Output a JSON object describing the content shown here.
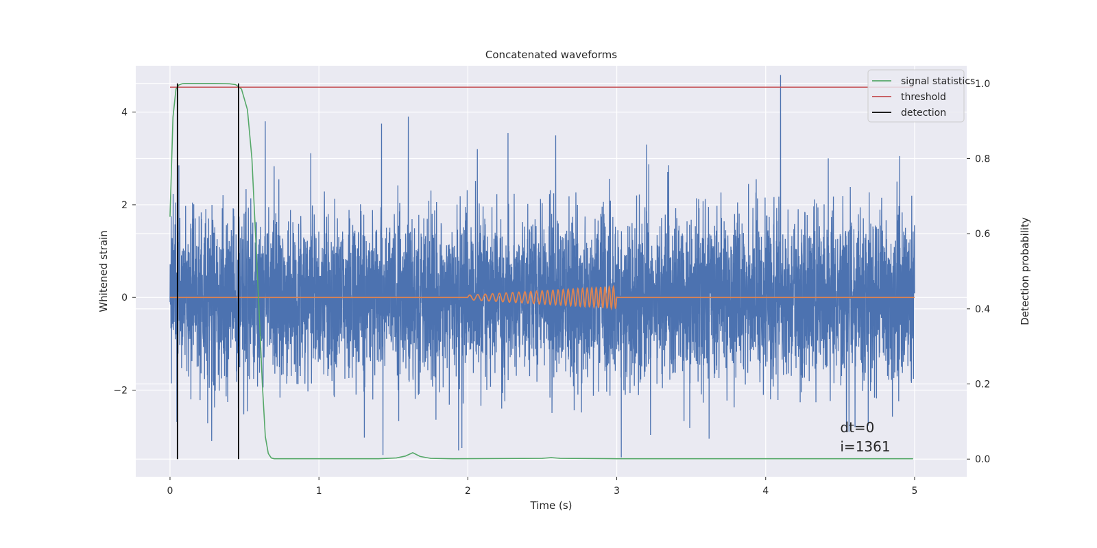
{
  "chart_data": {
    "type": "line",
    "title": "Concatenated waveforms",
    "xlabel": "Time (s)",
    "ylabel": "Whitened strain",
    "y2label": "Detection probability",
    "xlim": [
      -0.23,
      5.35
    ],
    "ylim": [
      -3.87,
      5.0
    ],
    "y2lim": [
      -0.047,
      1.047
    ],
    "x_ticks": [
      "0",
      "1",
      "2",
      "3",
      "4",
      "5"
    ],
    "y_ticks": [
      "−2",
      "0",
      "2",
      "4"
    ],
    "y2_ticks": [
      "0.0",
      "0.2",
      "0.4",
      "0.6",
      "0.8",
      "1.0"
    ],
    "grid": true,
    "legend_position": "top-right",
    "annotations": [
      "dt=0",
      "i=1361"
    ],
    "colors": {
      "strain": "#4c72b0",
      "injection": "#dd8452",
      "signal_statistics": "#55a868",
      "threshold": "#c44e52",
      "detection": "#000000",
      "axes_bg": "#eaeaf2"
    },
    "series": [
      {
        "name": "signal statistics",
        "axis": "right",
        "x": [
          0.0,
          0.02,
          0.04,
          0.06,
          0.08,
          0.1,
          0.2,
          0.3,
          0.4,
          0.44,
          0.48,
          0.52,
          0.55,
          0.58,
          0.6,
          0.62,
          0.64,
          0.66,
          0.68,
          0.7,
          1.0,
          1.4,
          1.52,
          1.58,
          1.63,
          1.68,
          1.75,
          1.9,
          2.5,
          2.56,
          2.62,
          3.0,
          4.0,
          4.99
        ],
        "y": [
          0.645,
          0.91,
          0.985,
          0.996,
          0.999,
          1.0,
          1.0,
          1.0,
          0.999,
          0.997,
          0.985,
          0.93,
          0.8,
          0.55,
          0.38,
          0.2,
          0.06,
          0.015,
          0.003,
          0.001,
          0.001,
          0.001,
          0.003,
          0.008,
          0.017,
          0.007,
          0.002,
          0.001,
          0.002,
          0.004,
          0.002,
          0.001,
          0.001,
          0.001
        ]
      },
      {
        "name": "threshold",
        "axis": "right",
        "x": [
          0.0,
          4.99
        ],
        "y": [
          0.99,
          0.99
        ]
      },
      {
        "name": "detection",
        "axis": "right",
        "x_events": [
          0.05,
          0.46
        ],
        "y": [
          0.0,
          1.0
        ]
      }
    ],
    "unlabeled_series": [
      {
        "description_key": "strain",
        "axis": "left",
        "x_range": [
          0.0,
          5.0
        ],
        "noise_sigma": 0.9,
        "peaks": [
          {
            "x": 0.06,
            "y": 2.85
          },
          {
            "x": 0.28,
            "y": -3.1
          },
          {
            "x": 0.64,
            "y": 3.8
          },
          {
            "x": 1.42,
            "y": 3.75
          },
          {
            "x": 1.6,
            "y": 3.9
          },
          {
            "x": 1.43,
            "y": -3.4
          },
          {
            "x": 1.96,
            "y": -3.25
          },
          {
            "x": 2.27,
            "y": 3.55
          },
          {
            "x": 2.59,
            "y": 3.5
          },
          {
            "x": 3.03,
            "y": -3.45
          },
          {
            "x": 4.1,
            "y": 4.8
          },
          {
            "x": 4.42,
            "y": 3.0
          },
          {
            "x": 4.9,
            "y": 3.05
          },
          {
            "x": 4.6,
            "y": -2.8
          },
          {
            "x": 3.62,
            "y": -3.05
          },
          {
            "x": 0.14,
            "y": -2.2
          },
          {
            "x": 4.56,
            "y": -2.9
          }
        ]
      },
      {
        "description_key": "injection",
        "axis": "left",
        "x_range": [
          0.0,
          5.0
        ],
        "chirp_start": 2.0,
        "chirp_end": 3.0,
        "chirp_amp_start": 0.05,
        "chirp_amp_end": 0.24,
        "chirp_freq_start": 18,
        "chirp_freq_end": 36
      }
    ]
  }
}
